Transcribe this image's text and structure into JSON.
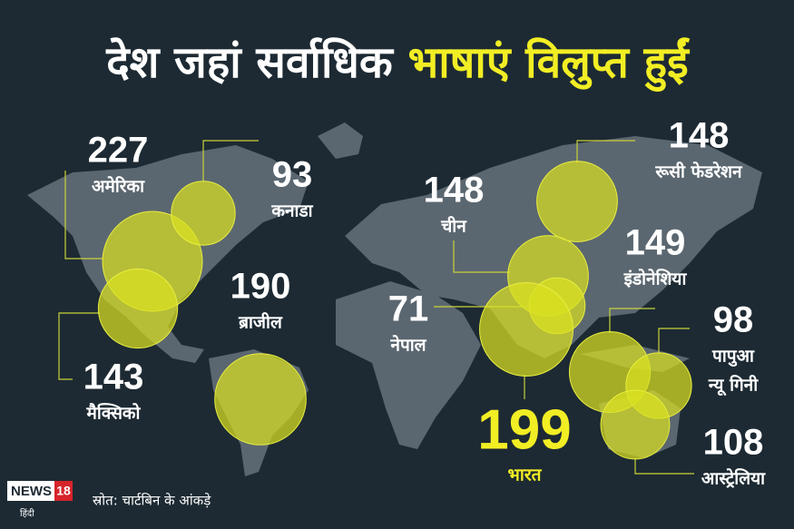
{
  "title": {
    "part1": "देश जहां सर्वाधिक",
    "part2": "भाषाएं विलुप्त हुईं"
  },
  "countries": [
    {
      "name": [
        "अमेरिका"
      ],
      "value": 227
    },
    {
      "name": [
        "कनाडा"
      ],
      "value": 93
    },
    {
      "name": [
        "मैक्सिको"
      ],
      "value": 143
    },
    {
      "name": [
        "ब्राजील"
      ],
      "value": 190
    },
    {
      "name": [
        "रूसी फेडरेशन"
      ],
      "value": 148
    },
    {
      "name": [
        "चीन"
      ],
      "value": 148
    },
    {
      "name": [
        "इंडोनेशिया"
      ],
      "value": 149
    },
    {
      "name": [
        "नेपाल"
      ],
      "value": 71
    },
    {
      "name": [
        "भारत"
      ],
      "value": 199
    },
    {
      "name": [
        "पापुआ",
        "न्यू गिनी"
      ],
      "value": 98
    },
    {
      "name": [
        "आस्ट्रेलिया"
      ],
      "value": 108
    }
  ],
  "source": "स्रोत: चार्टबिन के आंकड़े",
  "logo": {
    "brand": "NEWS",
    "number": "18",
    "language": "हिंदी"
  }
}
